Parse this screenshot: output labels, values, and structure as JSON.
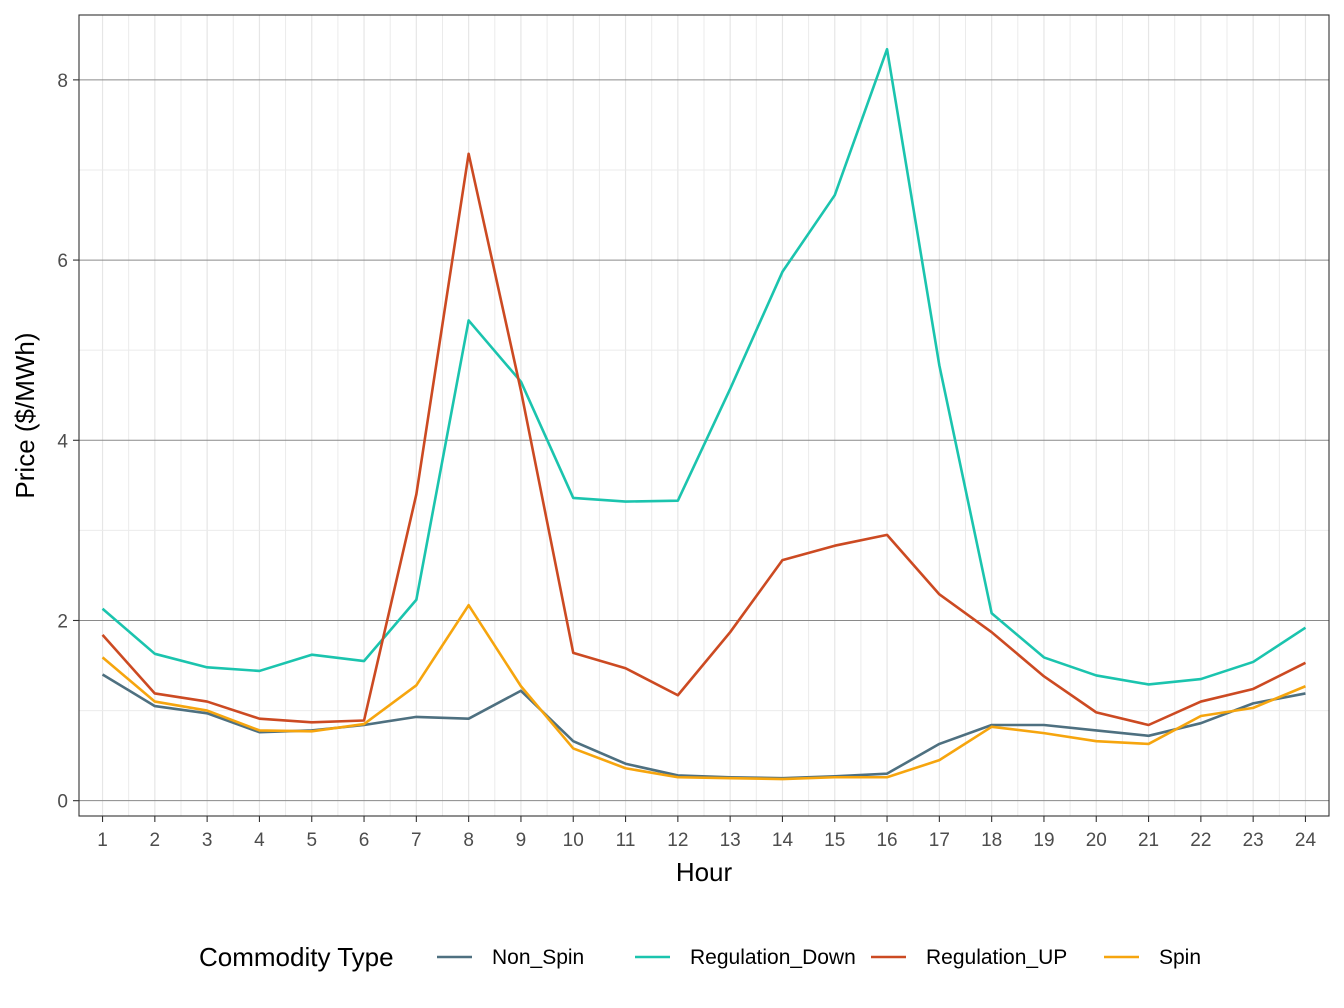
{
  "chart_data": {
    "type": "line",
    "title": "",
    "xlabel": "Hour",
    "ylabel": "Price ($/MWh)",
    "x": [
      1,
      2,
      3,
      4,
      5,
      6,
      7,
      8,
      9,
      10,
      11,
      12,
      13,
      14,
      15,
      16,
      17,
      18,
      19,
      20,
      21,
      22,
      23,
      24
    ],
    "xlim": [
      0.55,
      24.45
    ],
    "ylim": [
      -0.17,
      8.72
    ],
    "yticks": [
      0,
      2,
      4,
      6,
      8
    ],
    "grid": true,
    "legend": {
      "title": "Commodity Type",
      "position": "bottom"
    },
    "series": [
      {
        "name": "Non_Spin",
        "color": "#4E7080",
        "values": [
          1.4,
          1.05,
          0.97,
          0.76,
          0.78,
          0.84,
          0.93,
          0.91,
          1.22,
          0.66,
          0.41,
          0.28,
          0.26,
          0.25,
          0.27,
          0.3,
          0.63,
          0.84,
          0.84,
          0.78,
          0.72,
          0.86,
          1.08,
          1.19
        ]
      },
      {
        "name": "Regulation_Down",
        "color": "#1BC4AE",
        "values": [
          2.13,
          1.63,
          1.48,
          1.44,
          1.62,
          1.55,
          2.23,
          5.33,
          4.65,
          3.36,
          3.32,
          3.33,
          4.57,
          5.87,
          6.72,
          8.34,
          4.83,
          2.08,
          1.59,
          1.39,
          1.29,
          1.35,
          1.54,
          1.92
        ]
      },
      {
        "name": "Regulation_UP",
        "color": "#CC4A22",
        "values": [
          1.84,
          1.19,
          1.1,
          0.91,
          0.87,
          0.89,
          3.4,
          7.18,
          4.55,
          1.64,
          1.47,
          1.17,
          1.87,
          2.67,
          2.83,
          2.95,
          2.29,
          1.87,
          1.38,
          0.98,
          0.84,
          1.1,
          1.24,
          1.53
        ]
      },
      {
        "name": "Spin",
        "color": "#F6A50E",
        "values": [
          1.59,
          1.1,
          1.0,
          0.78,
          0.77,
          0.85,
          1.28,
          2.17,
          1.27,
          0.58,
          0.36,
          0.26,
          0.25,
          0.24,
          0.26,
          0.26,
          0.45,
          0.82,
          0.75,
          0.66,
          0.63,
          0.94,
          1.03,
          1.27
        ]
      }
    ]
  }
}
